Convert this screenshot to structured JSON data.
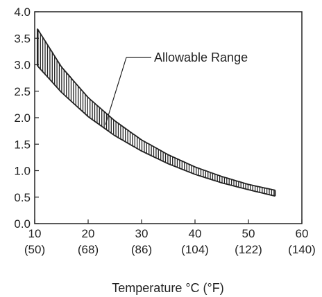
{
  "chart_data": {
    "type": "area",
    "title": "",
    "xlabel": "Temperature °C (°F)",
    "ylabel": "",
    "xlim": [
      10,
      60
    ],
    "ylim": [
      0,
      4.0
    ],
    "x_ticks": [
      {
        "value": 10,
        "c": "10",
        "f": "(50)"
      },
      {
        "value": 20,
        "c": "20",
        "f": "(68)"
      },
      {
        "value": 30,
        "c": "30",
        "f": "(86)"
      },
      {
        "value": 40,
        "c": "40",
        "f": "(104)"
      },
      {
        "value": 50,
        "c": "50",
        "f": "(122)"
      },
      {
        "value": 60,
        "c": "60",
        "f": "(140)"
      }
    ],
    "y_ticks": [
      "0.0",
      "0.5",
      "1.0",
      "1.5",
      "2.0",
      "2.5",
      "3.0",
      "3.5",
      "4.0"
    ],
    "grid": false,
    "annotation": "Allowable Range",
    "band": {
      "x": [
        10.5,
        15,
        20,
        25,
        30,
        35,
        40,
        45,
        50,
        55
      ],
      "upper": [
        3.68,
        2.96,
        2.38,
        1.94,
        1.58,
        1.3,
        1.07,
        0.89,
        0.74,
        0.63
      ],
      "lower": [
        2.98,
        2.48,
        2.02,
        1.66,
        1.37,
        1.13,
        0.93,
        0.77,
        0.64,
        0.52
      ]
    }
  }
}
